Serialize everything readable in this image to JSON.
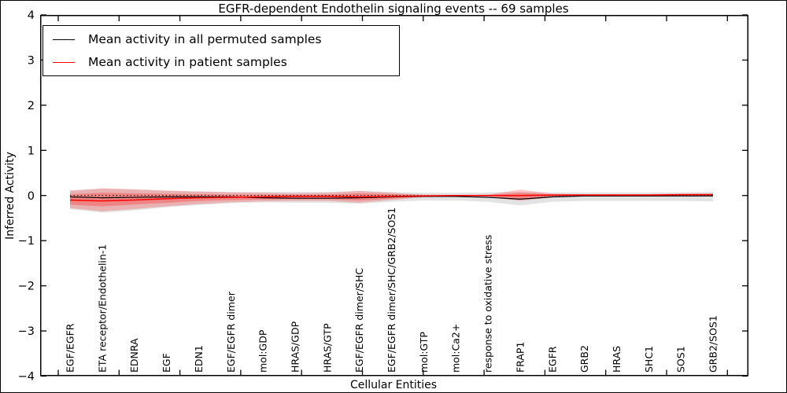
{
  "figure": {
    "title": "EGFR-dependent Endothelin signaling events -- 69 samples",
    "xlabel": "Cellular Entities",
    "ylabel": "Inferred Activity"
  },
  "chart_data": {
    "type": "line",
    "title": "EGFR-dependent Endothelin signaling events -- 69 samples",
    "xlabel": "Cellular Entities",
    "ylabel": "Inferred Activity",
    "ylim": [
      -4,
      4
    ],
    "yticks": [
      4,
      3,
      2,
      1,
      0,
      -1,
      -2,
      -3,
      -4
    ],
    "ytick_labels": [
      "4",
      "3",
      "2",
      "1",
      "0",
      "−1",
      "−2",
      "−3",
      "−4"
    ],
    "grid": false,
    "legend_position": "upper left",
    "categories": [
      "EGF/EGFR",
      "ETA receptor/Endothelin-1",
      "EDNRA",
      "EGF",
      "EDN1",
      "EGF/EGFR dimer",
      "mol:GDP",
      "HRAS/GDP",
      "HRAS/GTP",
      "EGF/EGFR dimer/SHC",
      "EGF/EGFR dimer/SHC/GRB2/SOS1",
      "mol:GTP",
      "mol:Ca2+",
      "response to oxidative stress",
      "FRAP1",
      "EGFR",
      "GRB2",
      "HRAS",
      "SHC1",
      "SOS1",
      "GRB2/SOS1"
    ],
    "series": [
      {
        "name": "Mean activity in all permuted samples",
        "color": "#000000",
        "values": [
          -0.03,
          -0.05,
          -0.04,
          -0.03,
          -0.03,
          -0.03,
          -0.05,
          -0.06,
          -0.06,
          -0.05,
          -0.03,
          -0.02,
          -0.02,
          -0.04,
          -0.08,
          -0.03,
          -0.01,
          -0.01,
          -0.01,
          -0.01,
          -0.01
        ]
      },
      {
        "name": "Mean activity in patient samples",
        "color": "#ff0000",
        "values": [
          -0.1,
          -0.12,
          -0.1,
          -0.07,
          -0.05,
          -0.04,
          -0.03,
          -0.02,
          -0.02,
          -0.03,
          -0.02,
          -0.01,
          0.0,
          0.0,
          0.0,
          0.01,
          0.01,
          0.01,
          0.01,
          0.02,
          0.02
        ]
      }
    ],
    "bands": [
      {
        "name": "permuted samples activity range",
        "color": "#000000",
        "opacity": 0.11,
        "upper": [
          0.12,
          0.15,
          0.13,
          0.1,
          0.09,
          0.08,
          0.08,
          0.08,
          0.08,
          0.1,
          0.08,
          0.06,
          0.06,
          0.07,
          0.08,
          0.07,
          0.07,
          0.07,
          0.07,
          0.07,
          0.08
        ],
        "lower": [
          -0.3,
          -0.38,
          -0.33,
          -0.26,
          -0.21,
          -0.17,
          -0.15,
          -0.16,
          -0.16,
          -0.18,
          -0.14,
          -0.11,
          -0.11,
          -0.14,
          -0.22,
          -0.14,
          -0.12,
          -0.12,
          -0.12,
          -0.12,
          -0.13
        ]
      },
      {
        "name": "patient samples activity range outer",
        "color": "#ff0000",
        "opacity": 0.22,
        "upper": [
          0.1,
          0.16,
          0.14,
          0.11,
          0.09,
          0.07,
          0.06,
          0.05,
          0.06,
          0.1,
          0.06,
          0.02,
          0.01,
          0.02,
          0.13,
          0.04,
          0.03,
          0.03,
          0.03,
          0.04,
          0.05
        ],
        "lower": [
          -0.28,
          -0.35,
          -0.3,
          -0.24,
          -0.19,
          -0.15,
          -0.13,
          -0.12,
          -0.12,
          -0.16,
          -0.1,
          -0.04,
          -0.02,
          -0.03,
          -0.12,
          -0.04,
          -0.02,
          -0.02,
          -0.02,
          -0.01,
          -0.01
        ]
      },
      {
        "name": "patient samples activity range inner",
        "color": "#ff0000",
        "opacity": 0.25,
        "upper": [
          0.03,
          0.06,
          0.05,
          0.04,
          0.03,
          0.02,
          0.02,
          0.02,
          0.02,
          0.05,
          0.03,
          0.01,
          0.0,
          0.01,
          0.06,
          0.02,
          0.01,
          0.01,
          0.01,
          0.02,
          0.03
        ],
        "lower": [
          -0.2,
          -0.24,
          -0.2,
          -0.16,
          -0.12,
          -0.1,
          -0.09,
          -0.08,
          -0.08,
          -0.11,
          -0.07,
          -0.02,
          -0.01,
          -0.02,
          -0.07,
          -0.02,
          -0.01,
          -0.01,
          -0.01,
          0.0,
          0.0
        ]
      }
    ],
    "zero_line": {
      "y": 0,
      "style": "dotted",
      "color": "#000000"
    }
  }
}
